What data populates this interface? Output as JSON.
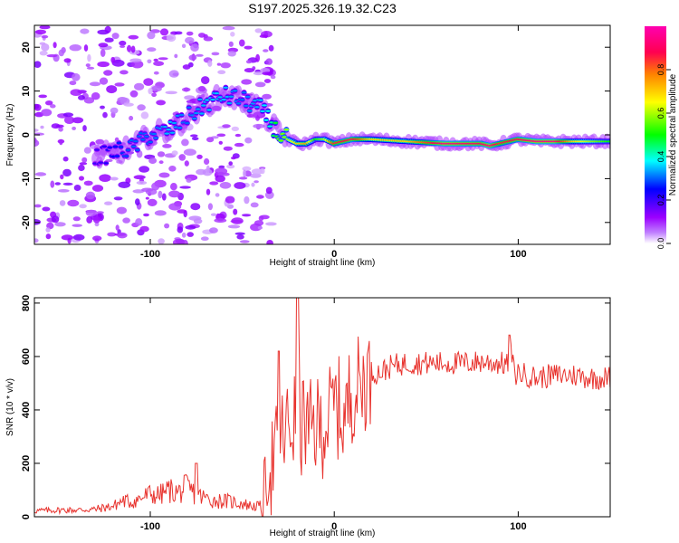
{
  "title": "S197.2025.326.19.32.C23",
  "colors": {
    "snr_line": "#e8332e",
    "frame": "#000000"
  },
  "chart_data": [
    {
      "type": "heatmap",
      "name": "spectrogram",
      "xlabel": "Height of straight line (km)",
      "ylabel": "Frequency (Hz)",
      "xlim": [
        -163,
        150
      ],
      "ylim": [
        -25,
        25
      ],
      "xticks": [
        -100,
        0,
        100
      ],
      "yticks": [
        -20,
        -10,
        0,
        10,
        20
      ],
      "colorbar": {
        "label": "Normalized spectral amplitude",
        "range": [
          0.0,
          1.0
        ],
        "ticks": [
          0.0,
          0.2,
          0.4,
          0.6,
          0.8
        ],
        "tick_labels": [
          "0.0",
          "0.2",
          "0.4",
          "0.6",
          "0.8"
        ],
        "colormap": [
          "#ffffff",
          "#9b00ff",
          "#0000ff",
          "#00ffff",
          "#00ff00",
          "#ffff00",
          "#ff8000",
          "#ff0050",
          "#ff00b0"
        ]
      },
      "ridge": {
        "heights_km": [
          -128,
          -120,
          -110,
          -100,
          -90,
          -80,
          -70,
          -60,
          -50,
          -40,
          -35,
          -30,
          -25,
          -20,
          -15,
          -10,
          -5,
          0,
          10,
          20,
          40,
          60,
          80,
          85,
          90,
          100,
          110,
          120,
          130,
          140,
          150
        ],
        "frequency_hz": [
          -5,
          -4,
          -3,
          0,
          1,
          4,
          7,
          9,
          8,
          6,
          3,
          0,
          -1,
          -2,
          -2,
          -1,
          -1,
          -2,
          -1,
          -1,
          -1.5,
          -2,
          -2,
          -2.5,
          -2,
          -1,
          -1.5,
          -1.5,
          -1.5,
          -1.5,
          -1.5
        ],
        "amplitude": [
          0.2,
          0.25,
          0.3,
          0.3,
          0.35,
          0.3,
          0.35,
          0.35,
          0.3,
          0.35,
          0.4,
          0.55,
          0.6,
          0.7,
          0.75,
          0.5,
          0.6,
          0.85,
          0.9,
          0.7,
          0.7,
          0.95,
          0.9,
          0.95,
          0.85,
          0.9,
          0.95,
          0.95,
          0.7,
          0.6,
          0.5
        ]
      }
    },
    {
      "type": "line",
      "name": "snr",
      "xlabel": "Height of straight line (km)",
      "ylabel": "SNR (10 * v/v)",
      "xlim": [
        -163,
        150
      ],
      "ylim": [
        0,
        820
      ],
      "xticks": [
        -100,
        0,
        100
      ],
      "yticks": [
        0,
        200,
        400,
        600,
        800
      ],
      "series": [
        {
          "name": "SNR",
          "x": [
            -163,
            -150,
            -140,
            -130,
            -120,
            -115,
            -110,
            -105,
            -100,
            -95,
            -90,
            -85,
            -80,
            -75,
            -70,
            -65,
            -60,
            -55,
            -50,
            -45,
            -40,
            -38,
            -35,
            -32,
            -30,
            -28,
            -25,
            -22,
            -20,
            -18,
            -16,
            -14,
            -12,
            -10,
            -8,
            -5,
            -2,
            0,
            3,
            6,
            8,
            10,
            12,
            15,
            18,
            20,
            25,
            30,
            35,
            40,
            50,
            60,
            70,
            80,
            90,
            95,
            96,
            98,
            100,
            110,
            120,
            130,
            140,
            150
          ],
          "y": [
            22,
            25,
            25,
            28,
            40,
            60,
            55,
            70,
            85,
            80,
            100,
            90,
            110,
            80,
            70,
            60,
            60,
            55,
            50,
            40,
            40,
            100,
            180,
            230,
            250,
            300,
            330,
            360,
            380,
            340,
            360,
            300,
            330,
            340,
            330,
            350,
            380,
            420,
            400,
            360,
            440,
            480,
            480,
            500,
            530,
            540,
            540,
            560,
            570,
            575,
            575,
            575,
            575,
            580,
            575,
            570,
            620,
            530,
            540,
            520,
            530,
            530,
            520,
            520
          ],
          "spikes": [
            {
              "x": -30,
              "y": 620
            },
            {
              "x": -20,
              "y": 820
            },
            {
              "x": -75,
              "y": 200
            },
            {
              "x": 95,
              "y": 680
            }
          ]
        }
      ]
    }
  ]
}
